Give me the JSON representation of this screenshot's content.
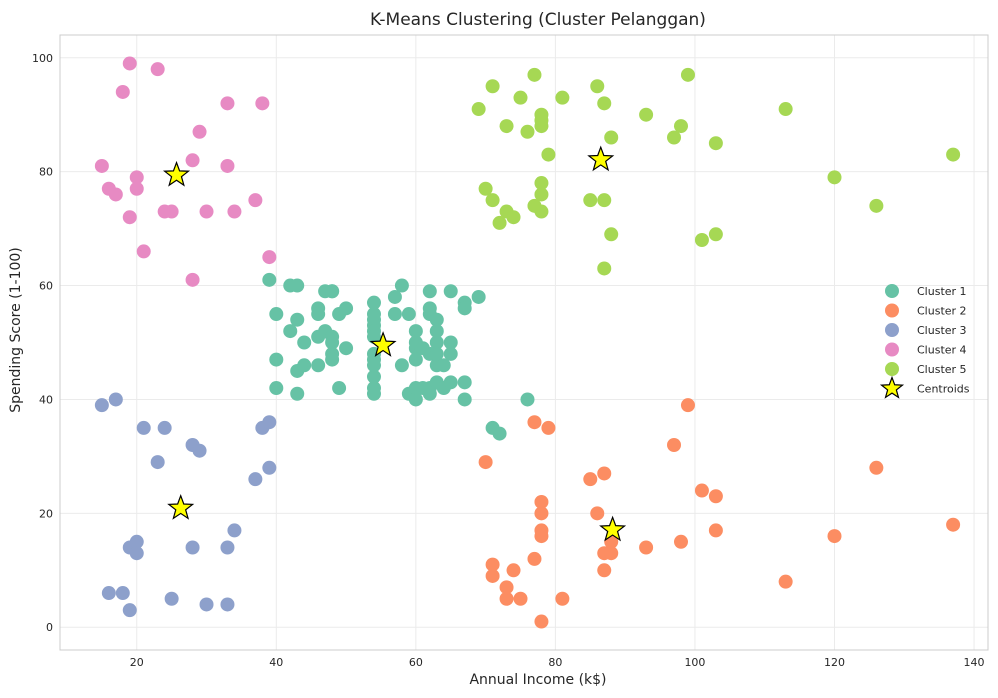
{
  "chart_data": {
    "type": "scatter",
    "title": "K-Means Clustering (Cluster Pelanggan)",
    "xlabel": "Annual Income (k$)",
    "ylabel": "Spending Score (1-100)",
    "xlim": [
      9,
      142
    ],
    "ylim": [
      -4,
      104
    ],
    "xticks": [
      20,
      40,
      60,
      80,
      100,
      120,
      140
    ],
    "yticks": [
      0,
      20,
      40,
      60,
      80,
      100
    ],
    "grid": true,
    "legend_position": "center-right",
    "series": [
      {
        "name": "Cluster 1",
        "color": "#66c2a5",
        "points": [
          [
            39,
            61
          ],
          [
            40,
            55
          ],
          [
            40,
            47
          ],
          [
            40,
            42
          ],
          [
            42,
            52
          ],
          [
            42,
            60
          ],
          [
            43,
            54
          ],
          [
            43,
            60
          ],
          [
            43,
            45
          ],
          [
            43,
            41
          ],
          [
            44,
            50
          ],
          [
            44,
            46
          ],
          [
            46,
            51
          ],
          [
            46,
            46
          ],
          [
            46,
            56
          ],
          [
            46,
            55
          ],
          [
            47,
            52
          ],
          [
            47,
            59
          ],
          [
            48,
            51
          ],
          [
            48,
            59
          ],
          [
            48,
            50
          ],
          [
            48,
            48
          ],
          [
            48,
            59
          ],
          [
            48,
            47
          ],
          [
            49,
            55
          ],
          [
            49,
            42
          ],
          [
            50,
            49
          ],
          [
            50,
            56
          ],
          [
            54,
            47
          ],
          [
            54,
            54
          ],
          [
            54,
            53
          ],
          [
            54,
            48
          ],
          [
            54,
            52
          ],
          [
            54,
            42
          ],
          [
            54,
            51
          ],
          [
            54,
            55
          ],
          [
            54,
            41
          ],
          [
            54,
            44
          ],
          [
            54,
            57
          ],
          [
            54,
            46
          ],
          [
            57,
            58
          ],
          [
            57,
            55
          ],
          [
            58,
            60
          ],
          [
            58,
            46
          ],
          [
            59,
            55
          ],
          [
            59,
            41
          ],
          [
            60,
            49
          ],
          [
            60,
            40
          ],
          [
            60,
            42
          ],
          [
            60,
            52
          ],
          [
            60,
            47
          ],
          [
            60,
            50
          ],
          [
            61,
            42
          ],
          [
            61,
            49
          ],
          [
            62,
            41
          ],
          [
            62,
            48
          ],
          [
            62,
            59
          ],
          [
            62,
            55
          ],
          [
            62,
            56
          ],
          [
            62,
            42
          ],
          [
            63,
            50
          ],
          [
            63,
            46
          ],
          [
            63,
            43
          ],
          [
            63,
            48
          ],
          [
            63,
            52
          ],
          [
            63,
            54
          ],
          [
            64,
            42
          ],
          [
            64,
            46
          ],
          [
            65,
            48
          ],
          [
            65,
            50
          ],
          [
            65,
            43
          ],
          [
            65,
            59
          ],
          [
            67,
            43
          ],
          [
            67,
            57
          ],
          [
            67,
            56
          ],
          [
            67,
            40
          ],
          [
            69,
            58
          ],
          [
            71,
            35
          ],
          [
            72,
            34
          ],
          [
            76,
            40
          ]
        ]
      },
      {
        "name": "Cluster 2",
        "color": "#fc8d62",
        "points": [
          [
            70,
            29
          ],
          [
            71,
            11
          ],
          [
            71,
            9
          ],
          [
            73,
            5
          ],
          [
            73,
            7
          ],
          [
            74,
            10
          ],
          [
            75,
            5
          ],
          [
            77,
            12
          ],
          [
            77,
            36
          ],
          [
            78,
            22
          ],
          [
            78,
            17
          ],
          [
            78,
            20
          ],
          [
            78,
            16
          ],
          [
            78,
            1
          ],
          [
            79,
            35
          ],
          [
            81,
            5
          ],
          [
            85,
            26
          ],
          [
            86,
            20
          ],
          [
            87,
            27
          ],
          [
            87,
            13
          ],
          [
            87,
            10
          ],
          [
            88,
            13
          ],
          [
            88,
            15
          ],
          [
            93,
            14
          ],
          [
            97,
            32
          ],
          [
            98,
            15
          ],
          [
            99,
            39
          ],
          [
            101,
            24
          ],
          [
            103,
            17
          ],
          [
            103,
            23
          ],
          [
            113,
            8
          ],
          [
            120,
            16
          ],
          [
            126,
            28
          ],
          [
            137,
            18
          ]
        ]
      },
      {
        "name": "Cluster 3",
        "color": "#8da0cb",
        "points": [
          [
            15,
            39
          ],
          [
            16,
            6
          ],
          [
            17,
            40
          ],
          [
            18,
            6
          ],
          [
            19,
            3
          ],
          [
            19,
            14
          ],
          [
            20,
            15
          ],
          [
            20,
            13
          ],
          [
            21,
            35
          ],
          [
            23,
            29
          ],
          [
            24,
            35
          ],
          [
            25,
            5
          ],
          [
            28,
            14
          ],
          [
            28,
            32
          ],
          [
            29,
            31
          ],
          [
            30,
            4
          ],
          [
            33,
            4
          ],
          [
            33,
            14
          ],
          [
            34,
            17
          ],
          [
            37,
            26
          ],
          [
            38,
            35
          ],
          [
            39,
            36
          ],
          [
            39,
            28
          ]
        ]
      },
      {
        "name": "Cluster 4",
        "color": "#e78ac3",
        "points": [
          [
            15,
            81
          ],
          [
            16,
            77
          ],
          [
            17,
            76
          ],
          [
            18,
            94
          ],
          [
            19,
            72
          ],
          [
            19,
            99
          ],
          [
            20,
            77
          ],
          [
            20,
            79
          ],
          [
            21,
            66
          ],
          [
            23,
            98
          ],
          [
            24,
            73
          ],
          [
            25,
            73
          ],
          [
            28,
            82
          ],
          [
            28,
            61
          ],
          [
            29,
            87
          ],
          [
            30,
            73
          ],
          [
            33,
            92
          ],
          [
            33,
            81
          ],
          [
            34,
            73
          ],
          [
            37,
            75
          ],
          [
            38,
            92
          ],
          [
            39,
            65
          ]
        ]
      },
      {
        "name": "Cluster 5",
        "color": "#a6d854",
        "points": [
          [
            69,
            91
          ],
          [
            70,
            77
          ],
          [
            71,
            95
          ],
          [
            71,
            75
          ],
          [
            72,
            71
          ],
          [
            73,
            88
          ],
          [
            73,
            73
          ],
          [
            74,
            72
          ],
          [
            75,
            93
          ],
          [
            76,
            87
          ],
          [
            77,
            97
          ],
          [
            77,
            74
          ],
          [
            78,
            90
          ],
          [
            78,
            88
          ],
          [
            78,
            76
          ],
          [
            78,
            89
          ],
          [
            78,
            78
          ],
          [
            78,
            73
          ],
          [
            79,
            83
          ],
          [
            81,
            93
          ],
          [
            85,
            75
          ],
          [
            86,
            95
          ],
          [
            87,
            63
          ],
          [
            87,
            75
          ],
          [
            87,
            92
          ],
          [
            88,
            86
          ],
          [
            88,
            69
          ],
          [
            93,
            90
          ],
          [
            97,
            86
          ],
          [
            98,
            88
          ],
          [
            99,
            97
          ],
          [
            101,
            68
          ],
          [
            103,
            85
          ],
          [
            103,
            69
          ],
          [
            113,
            91
          ],
          [
            120,
            79
          ],
          [
            126,
            74
          ],
          [
            137,
            83
          ]
        ]
      }
    ],
    "centroids": {
      "name": "Centroids",
      "color": "#ffff00",
      "points": [
        [
          55.3,
          49.5
        ],
        [
          88.2,
          17.1
        ],
        [
          26.3,
          20.9
        ],
        [
          25.7,
          79.4
        ],
        [
          86.5,
          82.1
        ]
      ]
    }
  }
}
